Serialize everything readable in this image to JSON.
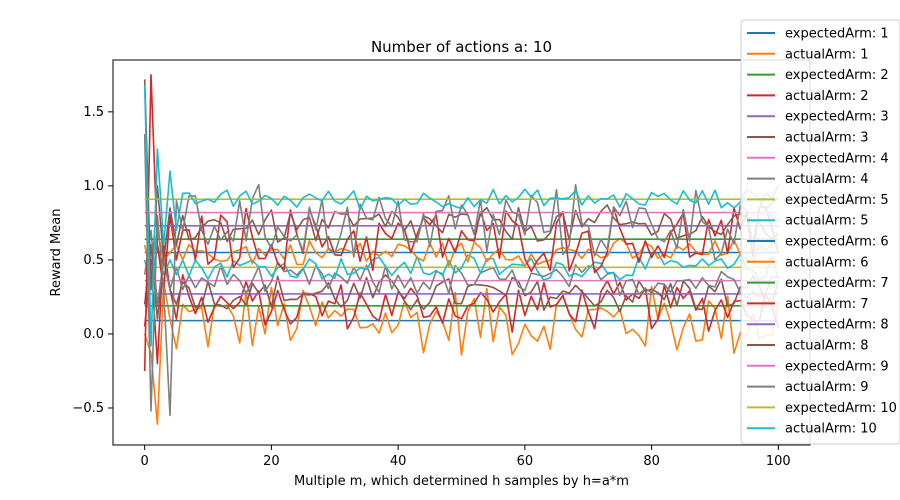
{
  "chart_data": {
    "type": "line",
    "title": "Number of actions a: 10",
    "xlabel": "Multiple m, which determined h samples by h=a*m",
    "ylabel": "Reward Mean",
    "xlim": [
      -5,
      105
    ],
    "ylim": [
      -0.75,
      1.85
    ],
    "xticks": [
      0,
      20,
      40,
      60,
      80,
      100
    ],
    "yticks": [
      -0.5,
      0.0,
      0.5,
      1.0,
      1.5
    ],
    "xtick_labels": [
      "0",
      "20",
      "40",
      "60",
      "80",
      "100"
    ],
    "ytick_labels": [
      "−0.5",
      "0.0",
      "0.5",
      "1.0",
      "1.5"
    ],
    "grid": false,
    "legend_position": "upper-right",
    "colors": [
      "#1f77b4",
      "#ff7f0e",
      "#2ca02c",
      "#d62728",
      "#9467bd",
      "#8c564b",
      "#e377c2",
      "#7f7f7f",
      "#bcbd22",
      "#17becf"
    ],
    "x_range": [
      0,
      100
    ],
    "series": [
      {
        "name": "expectedArm: 1",
        "kind": "expected",
        "value": 0.09
      },
      {
        "name": "actualArm: 1",
        "kind": "actual",
        "first_values": [
          0.0,
          -0.13,
          -0.61,
          0.35,
          0.1,
          -0.1,
          0.2
        ],
        "mean": 0.09,
        "spread": 0.22
      },
      {
        "name": "expectedArm: 2",
        "kind": "expected",
        "value": 0.19
      },
      {
        "name": "actualArm: 2",
        "kind": "actual",
        "first_values": [
          0.05,
          0.5,
          -0.2,
          0.6,
          0.3,
          0.1,
          0.4
        ],
        "mean": 0.19,
        "spread": 0.15
      },
      {
        "name": "expectedArm: 3",
        "kind": "expected",
        "value": 0.27
      },
      {
        "name": "actualArm: 3",
        "kind": "actual",
        "first_values": [
          0.2,
          0.6,
          0.1,
          0.5,
          0.3,
          0.2,
          0.35
        ],
        "mean": 0.27,
        "spread": 0.12
      },
      {
        "name": "expectedArm: 4",
        "kind": "expected",
        "value": 0.36
      },
      {
        "name": "actualArm: 4",
        "kind": "actual",
        "first_values": [
          0.4,
          0.7,
          0.2,
          0.5,
          0.3,
          0.45,
          0.3
        ],
        "mean": 0.36,
        "spread": 0.1
      },
      {
        "name": "expectedArm: 5",
        "kind": "expected",
        "value": 0.45
      },
      {
        "name": "actualArm: 5",
        "kind": "actual",
        "first_values": [
          0.5,
          0.3,
          0.6,
          0.4,
          0.5,
          0.4,
          0.5
        ],
        "mean": 0.45,
        "spread": 0.08
      },
      {
        "name": "expectedArm: 6",
        "kind": "expected",
        "value": 0.55
      },
      {
        "name": "actualArm: 6",
        "kind": "actual",
        "first_values": [
          0.6,
          0.4,
          0.7,
          0.5,
          0.55,
          0.6,
          0.5
        ],
        "mean": 0.55,
        "spread": 0.08
      },
      {
        "name": "expectedArm: 7",
        "kind": "expected",
        "value": 0.64
      },
      {
        "name": "actualArm: 7",
        "kind": "actual",
        "first_values": [
          -0.25,
          1.75,
          0.6,
          0.3,
          0.8,
          0.5,
          0.7
        ],
        "mean": 0.64,
        "spread": 0.2
      },
      {
        "name": "expectedArm: 8",
        "kind": "expected",
        "value": 0.73
      },
      {
        "name": "actualArm: 8",
        "kind": "actual",
        "first_values": [
          1.72,
          0.3,
          1.0,
          0.5,
          0.85,
          0.6,
          0.8
        ],
        "mean": 0.73,
        "spread": 0.12
      },
      {
        "name": "expectedArm: 9",
        "kind": "expected",
        "value": 0.82
      },
      {
        "name": "actualArm: 9",
        "kind": "actual",
        "first_values": [
          1.35,
          -0.52,
          0.8,
          0.3,
          -0.55,
          0.9,
          0.7
        ],
        "mean": 0.75,
        "spread": 0.22
      },
      {
        "name": "expectedArm: 10",
        "kind": "expected",
        "value": 0.91
      },
      {
        "name": "actualArm: 10",
        "kind": "actual",
        "first_values": [
          1.68,
          -0.08,
          1.25,
          0.6,
          1.1,
          0.7,
          0.95
        ],
        "mean": 0.91,
        "spread": 0.06
      }
    ]
  }
}
